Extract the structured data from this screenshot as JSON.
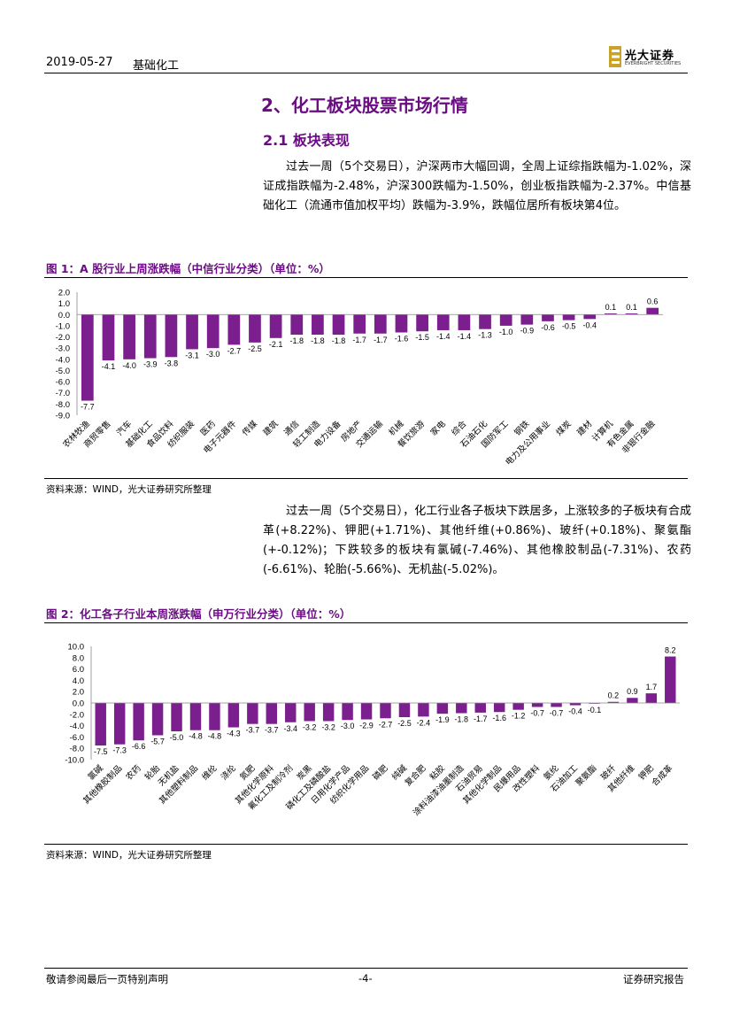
{
  "header": {
    "date": "2019-05-27",
    "sector": "基础化工",
    "logo_cn": "光大证券",
    "logo_en": "EVERBRIGHT SECURITIES"
  },
  "section": {
    "title": "2、化工板块股票市场行情",
    "subtitle": "2.1 板块表现"
  },
  "para1": "过去一周（5个交易日），沪深两市大幅回调，全周上证综指跌幅为-1.02%，深证成指跌幅为-2.48%，沪深300跌幅为-1.50%，创业板指跌幅为-2.37%。中信基础化工（流通市值加权平均）跌幅为-3.9%，跌幅位居所有板块第4位。",
  "para2": "过去一周（5个交易日），化工行业各子板块下跌居多，上涨较多的子板块有合成革(+8.22%)、钾肥(+1.71%)、其他纤维(+0.86%)、玻纤(+0.18%)、聚氨酯(+-0.12%)；下跌较多的板块有氯碱(-7.46%)、其他橡胶制品(-7.31%)、农药(-6.61%)、轮胎(-5.66%)、无机盐(-5.02%)。",
  "figure1": {
    "title": "图 1：A 股行业上周涨跌幅（中信行业分类）（单位：%）",
    "source": "资料来源：WIND，光大证券研究所整理"
  },
  "figure2": {
    "title": "图 2：化工各子行业本周涨跌幅（申万行业分类）（单位：%）",
    "source": "资料来源：WIND，光大证券研究所整理"
  },
  "footer": {
    "left": "敬请参阅最后一页特别声明",
    "center": "-4-",
    "right": "证券研究报告"
  },
  "chart_data": [
    {
      "type": "bar",
      "color": "#7b1f8f",
      "categories": [
        "农林牧渔",
        "商贸零售",
        "汽车",
        "基础化工",
        "食品饮料",
        "纺织服装",
        "医药",
        "电子元器件",
        "传媒",
        "建筑",
        "通信",
        "轻工制造",
        "电力设备",
        "房地产",
        "交通运输",
        "机械",
        "餐饮旅游",
        "家电",
        "综合",
        "石油石化",
        "国防军工",
        "钢铁",
        "电力及公用事业",
        "煤炭",
        "建材",
        "计算机",
        "有色金属",
        "非银行金融"
      ],
      "values": [
        -7.7,
        -4.1,
        -4.0,
        -3.9,
        -3.8,
        -3.1,
        -3.0,
        -2.7,
        -2.5,
        -2.1,
        -1.8,
        -1.8,
        -1.8,
        -1.7,
        -1.7,
        -1.6,
        -1.5,
        -1.4,
        -1.4,
        -1.3,
        -1.0,
        -0.9,
        -0.6,
        -0.5,
        -0.4,
        0.1,
        0.1,
        0.6
      ],
      "labels": [
        "-7.7",
        "-4.1",
        "-4.0",
        "-3.9",
        "-3.8",
        "-3.1",
        "-3.0",
        "-2.7",
        "-2.5",
        "-2.1",
        "-1.8",
        "-1.8",
        "-1.8",
        "-1.7",
        "-1.7",
        "-1.6",
        "-1.5",
        "-1.4",
        "-1.4",
        "-1.3",
        "-1.0",
        "-0.9",
        "-0.6",
        "-0.5",
        "-0.4",
        "0.1",
        "0.1",
        "0.6"
      ],
      "yticks": [
        "2.0",
        "1.0",
        "0.0",
        "-1.0",
        "-2.0",
        "-3.0",
        "-4.0",
        "-5.0",
        "-6.0",
        "-7.0",
        "-8.0",
        "-9.0"
      ],
      "ylim": [
        -9.0,
        2.0
      ]
    },
    {
      "type": "bar",
      "color": "#7b1f8f",
      "categories": [
        "氯碱",
        "其他橡胶制品",
        "农药",
        "轮胎",
        "无机盐",
        "其他塑料制品",
        "维纶",
        "涤纶",
        "氮肥",
        "其他化学原料",
        "氟化工及制冷剂",
        "炭黑",
        "磷化工及磷酸盐",
        "日用化学产品",
        "纺织化学用品",
        "磷肥",
        "纯碱",
        "复合肥",
        "粘胶",
        "涂料油漆油墨制造",
        "石油贸易",
        "其他化学制品",
        "民爆用品",
        "改性塑料",
        "氨纶",
        "石油加工",
        "聚氨酯",
        "玻纤",
        "其他纤维",
        "钾肥",
        "合成革"
      ],
      "values": [
        -7.5,
        -7.3,
        -6.6,
        -5.7,
        -5.0,
        -4.8,
        -4.8,
        -4.3,
        -3.7,
        -3.7,
        -3.4,
        -3.2,
        -3.2,
        -3.0,
        -2.9,
        -2.7,
        -2.5,
        -2.4,
        -1.9,
        -1.8,
        -1.7,
        -1.6,
        -1.2,
        -0.7,
        -0.7,
        -0.4,
        -0.1,
        0.2,
        0.9,
        1.7,
        8.2
      ],
      "labels": [
        "-7.5",
        "-7.3",
        "-6.6",
        "-5.7",
        "-5.0",
        "-4.8",
        "-4.8",
        "-4.3",
        "-3.7",
        "-3.7",
        "-3.4",
        "-3.2",
        "-3.2",
        "-3.0",
        "-2.9",
        "-2.7",
        "-2.5",
        "-2.4",
        "-1.9",
        "-1.8",
        "-1.7",
        "-1.6",
        "-1.2",
        "-0.7",
        "-0.7",
        "-0.4",
        "-0.1",
        "0.2",
        "0.9",
        "1.7",
        "8.2"
      ],
      "yticks": [
        "10.0",
        "8.0",
        "6.0",
        "4.0",
        "2.0",
        "0.0",
        "-2.0",
        "-4.0",
        "-6.0",
        "-8.0",
        "-10.0"
      ],
      "ylim": [
        -10.0,
        10.0
      ]
    }
  ]
}
